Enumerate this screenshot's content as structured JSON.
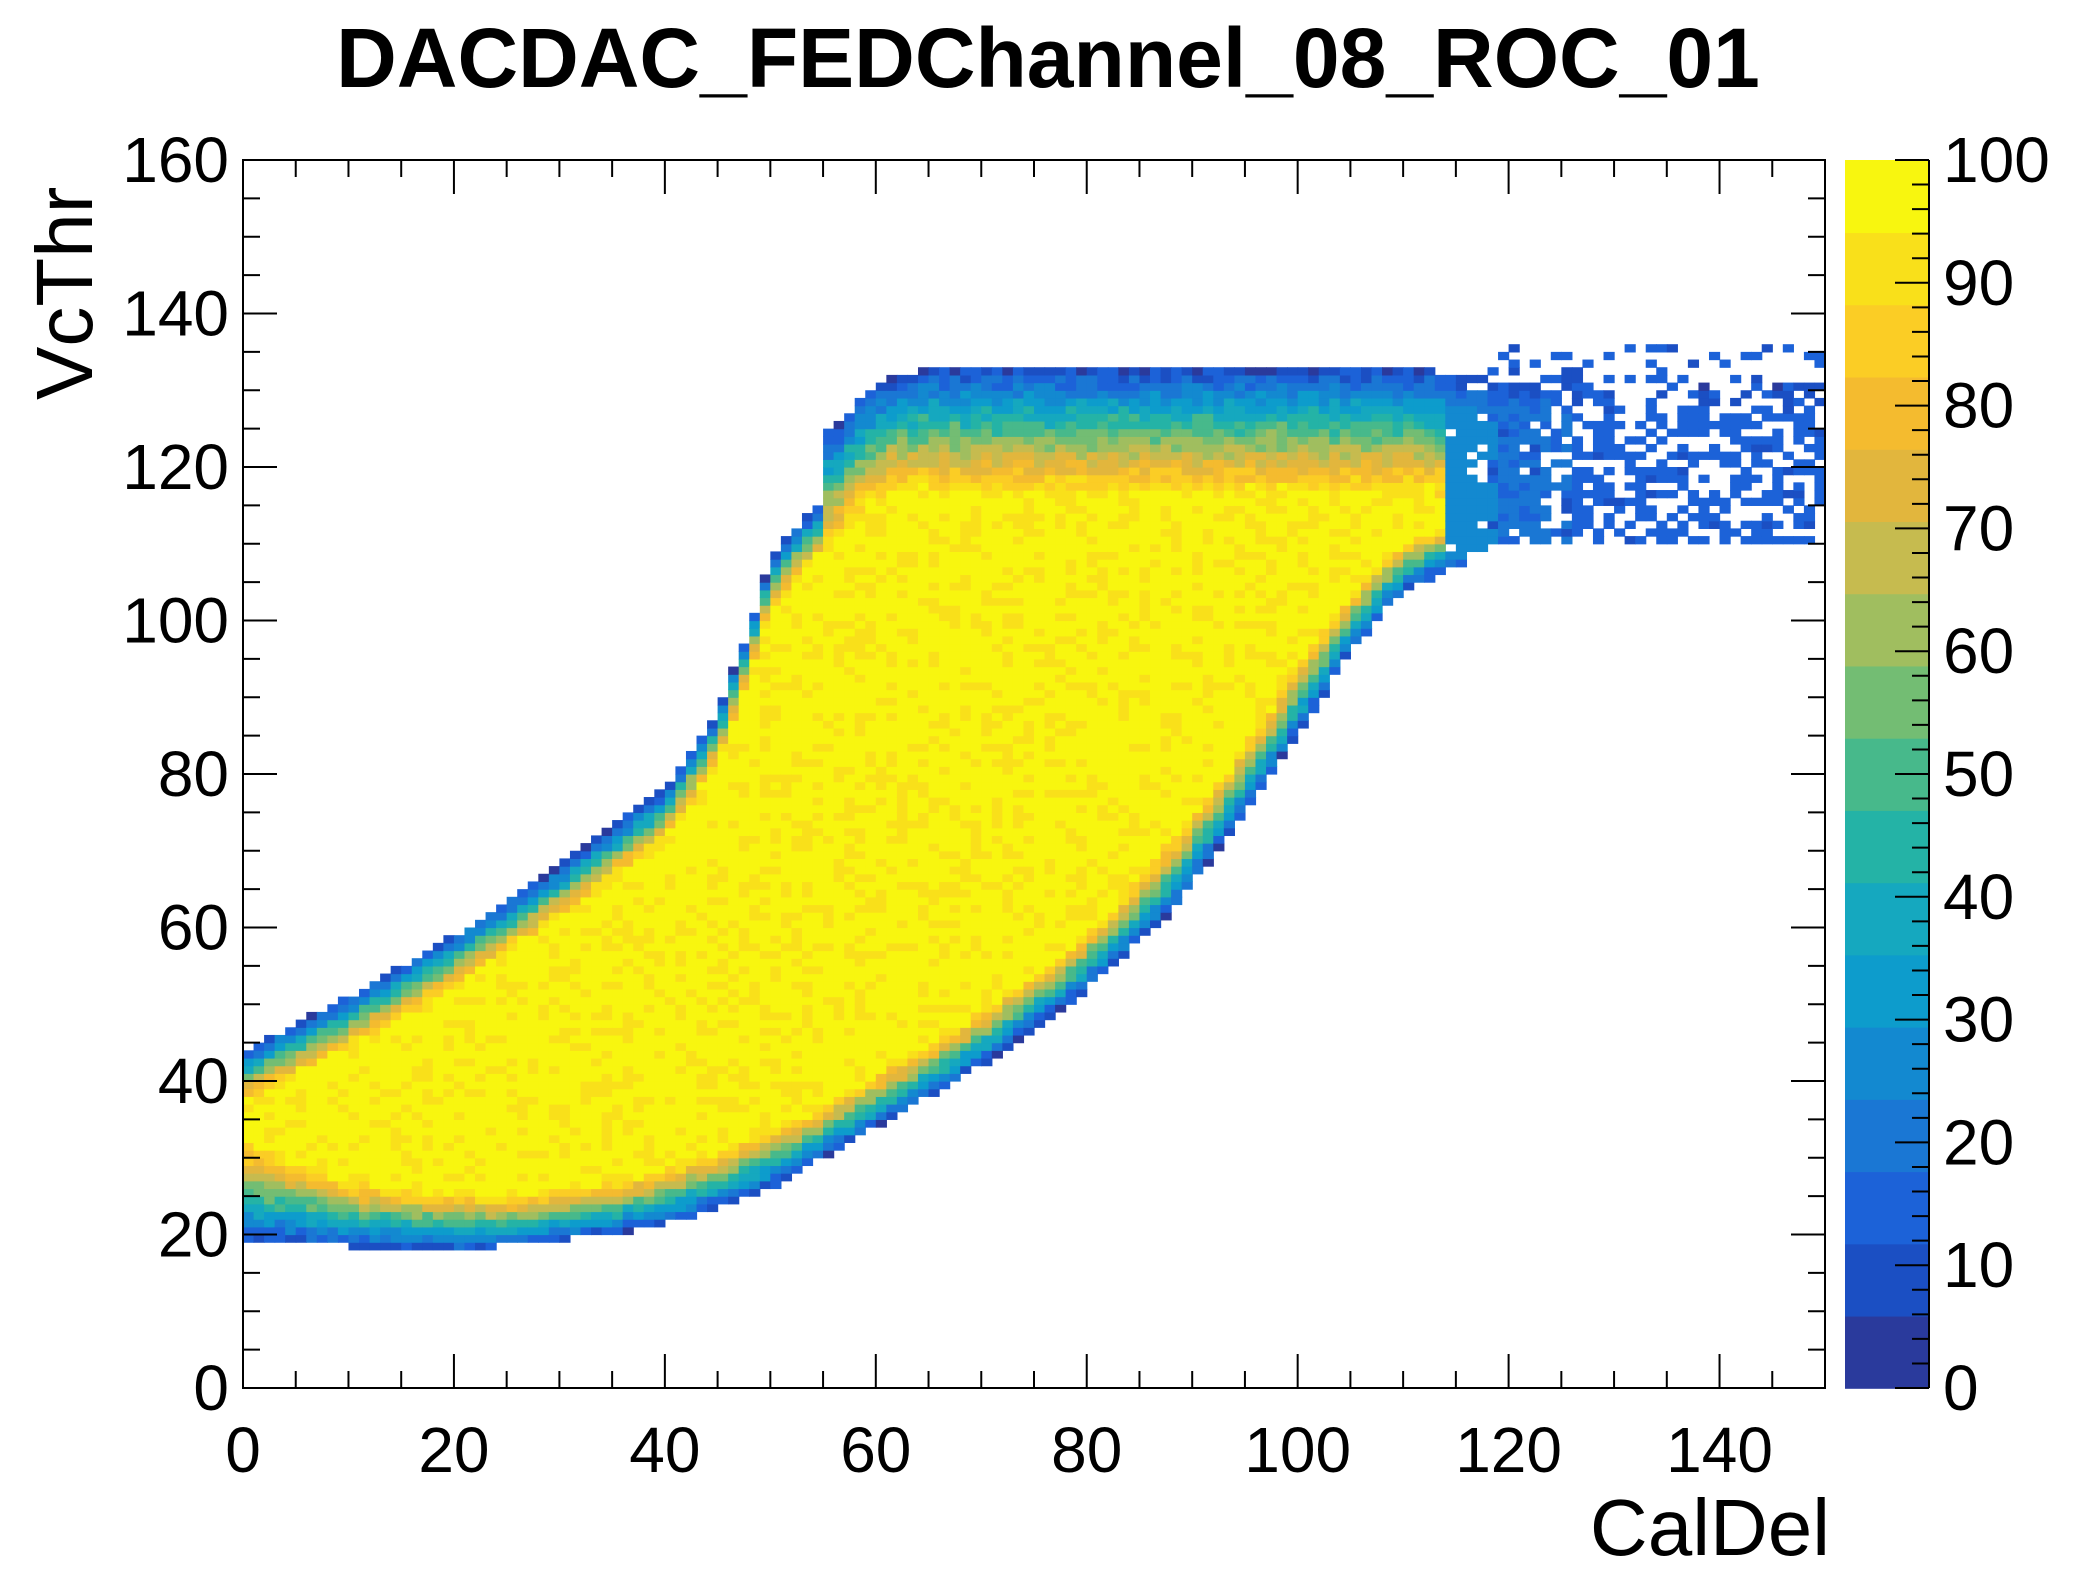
{
  "chart_data": {
    "type": "heatmap",
    "title": "DACDAC_FEDChannel_08_ROC_01",
    "xlabel": "CalDel",
    "ylabel": "VcThr",
    "xlim": [
      0,
      150
    ],
    "ylim": [
      0,
      160
    ],
    "zlim": [
      0,
      100
    ],
    "x_ticks": [
      "0",
      "20",
      "40",
      "60",
      "80",
      "100",
      "120",
      "140"
    ],
    "y_ticks": [
      "0",
      "20",
      "40",
      "60",
      "80",
      "100",
      "120",
      "140",
      "160"
    ],
    "z_ticks": [
      "0",
      "10",
      "20",
      "30",
      "40",
      "50",
      "60",
      "70",
      "80",
      "90",
      "100"
    ],
    "palette": [
      "#2a3a9c",
      "#1b4fc3",
      "#1c62d8",
      "#1a77d4",
      "#1389d0",
      "#0d9ccc",
      "#15a8bf",
      "#24b3a6",
      "#47b98b",
      "#73bd73",
      "#a0be5f",
      "#c6bb4f",
      "#e2b63d",
      "#f4bb2f",
      "#fbcd25",
      "#f9e01a",
      "#f8f60f"
    ],
    "lower_edge": [
      [
        0,
        33
      ],
      [
        10,
        27
      ],
      [
        25,
        25
      ],
      [
        35,
        27
      ],
      [
        45,
        31
      ],
      [
        55,
        37
      ],
      [
        65,
        45
      ],
      [
        75,
        54
      ],
      [
        82,
        62
      ],
      [
        90,
        75
      ],
      [
        96,
        86
      ],
      [
        100,
        95
      ],
      [
        104,
        102
      ],
      [
        108,
        108
      ],
      [
        112,
        112
      ]
    ],
    "upper_edge": [
      [
        0,
        37
      ],
      [
        10,
        44
      ],
      [
        20,
        52
      ],
      [
        30,
        61
      ],
      [
        40,
        71
      ],
      [
        45,
        81
      ],
      [
        48,
        92
      ],
      [
        50,
        101
      ],
      [
        53,
        106
      ],
      [
        56,
        110
      ],
      [
        58,
        113
      ],
      [
        62,
        116
      ],
      [
        110,
        116
      ]
    ],
    "band_top": [
      [
        56,
        125
      ],
      [
        60,
        131
      ],
      [
        65,
        133
      ],
      [
        110,
        133
      ],
      [
        120,
        131
      ]
    ],
    "band_bottom": [
      [
        0,
        19
      ],
      [
        20,
        18
      ],
      [
        35,
        20
      ],
      [
        42,
        22
      ],
      [
        50,
        26
      ],
      [
        60,
        34
      ],
      [
        70,
        42
      ],
      [
        80,
        52
      ],
      [
        88,
        62
      ],
      [
        95,
        75
      ],
      [
        101,
        87
      ],
      [
        105,
        96
      ],
      [
        110,
        104
      ],
      [
        120,
        110
      ]
    ],
    "sparse_region": {
      "x": [
        118,
        150
      ],
      "y": [
        110,
        136
      ],
      "density": 0.35
    }
  }
}
